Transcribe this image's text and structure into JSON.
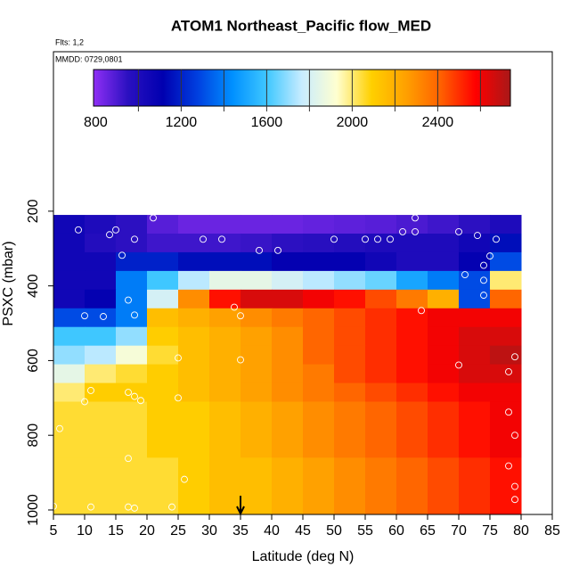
{
  "chart_data": {
    "type": "heatmap",
    "title": "ATOM1 Northeast_Pacific flow_MED",
    "flights_label": "Flts: 1,2",
    "dates_label": "MMDD: 0729,0801",
    "x_label": "Latitude (deg N)",
    "y_label": "PSXC (mbar)",
    "xlim": [
      5,
      85
    ],
    "xticks": [
      5,
      10,
      15,
      20,
      25,
      30,
      35,
      40,
      45,
      50,
      55,
      60,
      65,
      70,
      75,
      80,
      85
    ],
    "ylim": [
      1012,
      -227
    ],
    "yticks": [
      200,
      400,
      600,
      800,
      1000
    ],
    "x_edges": [
      5,
      10,
      15,
      20,
      25,
      30,
      35,
      40,
      45,
      50,
      55,
      60,
      65,
      70,
      75,
      80
    ],
    "y_edges": [
      210,
      260,
      310,
      360,
      410,
      460,
      510,
      560,
      610,
      660,
      710,
      860,
      1010
    ],
    "z": [
      [
        1050,
        1000,
        950,
        880,
        850,
        850,
        850,
        850,
        860,
        870,
        880,
        900,
        920,
        950,
        1000
      ],
      [
        1050,
        980,
        950,
        920,
        920,
        920,
        930,
        950,
        960,
        980,
        1000,
        1000,
        1000,
        1050,
        1150
      ],
      [
        1050,
        1050,
        1200,
        1200,
        1150,
        1150,
        1150,
        1100,
        1100,
        1100,
        1050,
        1000,
        1000,
        1100,
        1300
      ],
      [
        1050,
        1050,
        1400,
        1600,
        1750,
        1850,
        1850,
        1800,
        1750,
        1700,
        1650,
        1500,
        1400,
        1300,
        2000
      ],
      [
        1050,
        1100,
        1400,
        1800,
        2300,
        2550,
        2650,
        2650,
        2600,
        2550,
        2450,
        2350,
        2200,
        1300,
        2400
      ],
      [
        1300,
        1300,
        1400,
        2150,
        2200,
        2250,
        2300,
        2350,
        2400,
        2450,
        2500,
        2550,
        2600,
        2600,
        2600
      ],
      [
        1600,
        1600,
        1700,
        2100,
        2150,
        2200,
        2250,
        2300,
        2400,
        2450,
        2500,
        2550,
        2600,
        2650,
        2650
      ],
      [
        1700,
        1750,
        1900,
        2050,
        2150,
        2200,
        2250,
        2300,
        2400,
        2450,
        2500,
        2550,
        2600,
        2650,
        2700
      ],
      [
        1850,
        2000,
        2050,
        2100,
        2150,
        2200,
        2250,
        2300,
        2350,
        2450,
        2500,
        2550,
        2600,
        2650,
        2650
      ],
      [
        2000,
        2100,
        2100,
        2100,
        2150,
        2200,
        2250,
        2300,
        2350,
        2400,
        2450,
        2500,
        2550,
        2600,
        2600
      ],
      [
        2050,
        2050,
        2050,
        2100,
        2100,
        2150,
        2200,
        2250,
        2300,
        2350,
        2400,
        2450,
        2500,
        2550,
        2600
      ],
      [
        2050,
        2050,
        2050,
        2050,
        2100,
        2150,
        2150,
        2200,
        2250,
        2300,
        2350,
        2400,
        2450,
        2500,
        2550
      ]
    ],
    "colorbar_lim": [
      790,
      2740
    ],
    "colorbar_ticks": [
      800,
      1200,
      1600,
      2000,
      2400
    ],
    "colorbar_breaks": [
      1000,
      1200,
      1400,
      1600,
      1800,
      2000,
      2200,
      2400,
      2600
    ],
    "colors": [
      "#8f2ff5",
      "#2a10c0",
      "#0000b0",
      "#0040e0",
      "#0090ff",
      "#40c8ff",
      "#c8ecff",
      "#ffffd0",
      "#ffd000",
      "#ffa000",
      "#ff6000",
      "#ff0000",
      "#a81818"
    ],
    "obs_lat": [
      9,
      14,
      15,
      21,
      18,
      29,
      32,
      38,
      41,
      50,
      55,
      57,
      59,
      61,
      63,
      63,
      70,
      73,
      76,
      16,
      74,
      75,
      71,
      17,
      74,
      64,
      34,
      35,
      18,
      10,
      13,
      74,
      79,
      70,
      35,
      25,
      78,
      11,
      17,
      18,
      19,
      10,
      25,
      6,
      78,
      79,
      17,
      78,
      26,
      79,
      79,
      5,
      11,
      17,
      18,
      24
    ],
    "obs_p": [
      250,
      263,
      250,
      218,
      275,
      275,
      275,
      305,
      305,
      275,
      275,
      275,
      275,
      255,
      218,
      255,
      255,
      265,
      275,
      318,
      345,
      320,
      370,
      438,
      425,
      466,
      457,
      480,
      478,
      480,
      482,
      385,
      590,
      612,
      598,
      593,
      630,
      680,
      685,
      696,
      707,
      710,
      700,
      782,
      738,
      800,
      862,
      882,
      918,
      937,
      972,
      990,
      992,
      992,
      995,
      992
    ],
    "arrow_x": 35
  }
}
